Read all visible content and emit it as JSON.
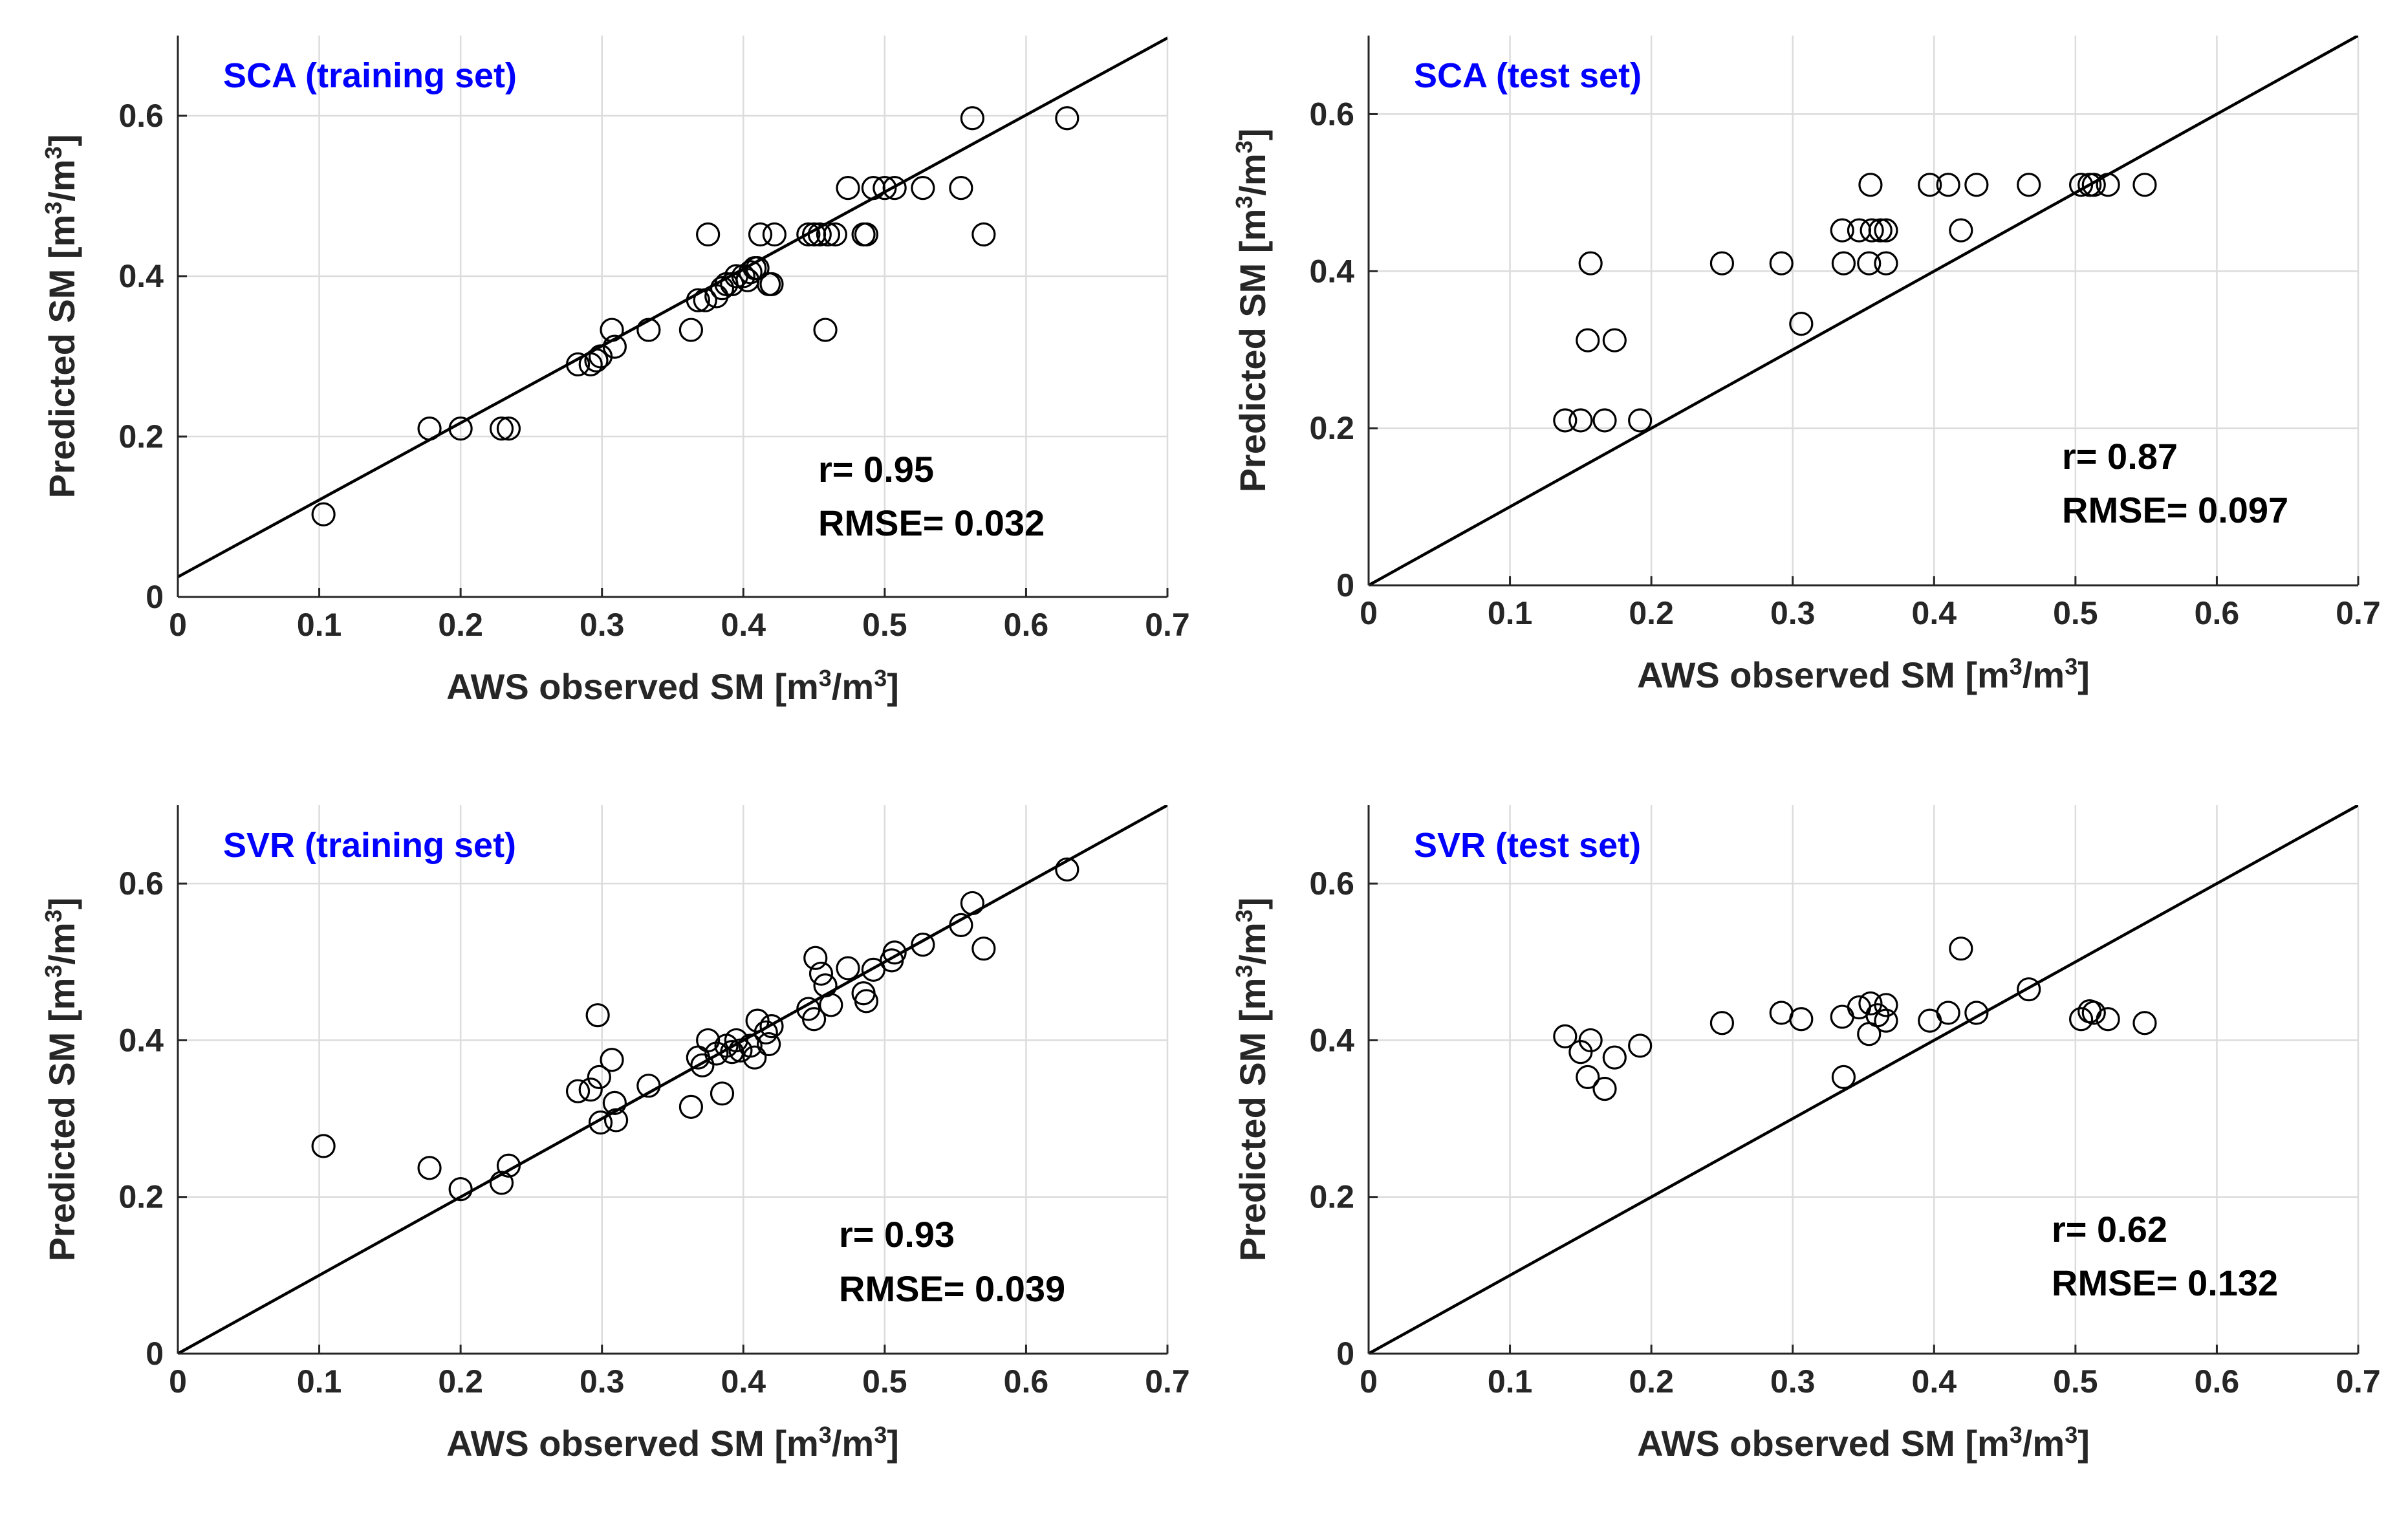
{
  "figure": {
    "background": "#ffffff"
  },
  "chart_data": [
    {
      "type": "scatter",
      "title": "SCA (training set)",
      "title_color": "#0000ff",
      "xlabel": "AWS observed SM [m^3/m^3]",
      "ylabel": "Predicted SM [m^3/m^3]",
      "xlim": [
        0,
        0.7
      ],
      "ylim": [
        0,
        0.7
      ],
      "xticks": [
        "0",
        "0.1",
        "0.2",
        "0.3",
        "0.4",
        "0.5",
        "0.6",
        "0.7"
      ],
      "yticks": [
        "0",
        "0.2",
        "0.4",
        "0.6"
      ],
      "grid": true,
      "fit_line": {
        "intercept": 0.025,
        "slope": 0.96
      },
      "stats": {
        "r_label": "r= 0.95",
        "rmse_label": "RMSE= 0.032"
      },
      "points": [
        [
          0.103,
          0.103
        ],
        [
          0.178,
          0.21
        ],
        [
          0.2,
          0.21
        ],
        [
          0.229,
          0.21
        ],
        [
          0.234,
          0.21
        ],
        [
          0.283,
          0.29
        ],
        [
          0.292,
          0.29
        ],
        [
          0.296,
          0.295
        ],
        [
          0.299,
          0.3
        ],
        [
          0.307,
          0.333
        ],
        [
          0.309,
          0.312
        ],
        [
          0.333,
          0.333
        ],
        [
          0.363,
          0.333
        ],
        [
          0.368,
          0.37
        ],
        [
          0.373,
          0.37
        ],
        [
          0.375,
          0.452
        ],
        [
          0.381,
          0.375
        ],
        [
          0.385,
          0.385
        ],
        [
          0.388,
          0.39
        ],
        [
          0.392,
          0.39
        ],
        [
          0.395,
          0.4
        ],
        [
          0.4,
          0.4
        ],
        [
          0.403,
          0.395
        ],
        [
          0.405,
          0.405
        ],
        [
          0.408,
          0.41
        ],
        [
          0.41,
          0.41
        ],
        [
          0.412,
          0.452
        ],
        [
          0.418,
          0.39
        ],
        [
          0.42,
          0.39
        ],
        [
          0.422,
          0.452
        ],
        [
          0.446,
          0.452
        ],
        [
          0.45,
          0.452
        ],
        [
          0.454,
          0.452
        ],
        [
          0.458,
          0.333
        ],
        [
          0.46,
          0.452
        ],
        [
          0.465,
          0.452
        ],
        [
          0.474,
          0.51
        ],
        [
          0.485,
          0.452
        ],
        [
          0.487,
          0.452
        ],
        [
          0.492,
          0.51
        ],
        [
          0.5,
          0.51
        ],
        [
          0.507,
          0.51
        ],
        [
          0.527,
          0.51
        ],
        [
          0.554,
          0.51
        ],
        [
          0.562,
          0.597
        ],
        [
          0.57,
          0.452
        ],
        [
          0.629,
          0.597
        ]
      ]
    },
    {
      "type": "scatter",
      "title": "SCA (test set)",
      "title_color": "#0000ff",
      "xlabel": "AWS observed SM [m^3/m^3]",
      "ylabel": "Predicted SM [m^3/m^3]",
      "xlim": [
        0,
        0.7
      ],
      "ylim": [
        0,
        0.7
      ],
      "xticks": [
        "0",
        "0.1",
        "0.2",
        "0.3",
        "0.4",
        "0.5",
        "0.6",
        "0.7"
      ],
      "yticks": [
        "0",
        "0.2",
        "0.4",
        "0.6"
      ],
      "grid": true,
      "fit_line": {
        "intercept": 0.0,
        "slope": 1.0
      },
      "stats": {
        "r_label": "r= 0.87",
        "rmse_label": "RMSE= 0.097"
      },
      "points": [
        [
          0.139,
          0.21
        ],
        [
          0.15,
          0.21
        ],
        [
          0.155,
          0.312
        ],
        [
          0.157,
          0.41
        ],
        [
          0.167,
          0.21
        ],
        [
          0.174,
          0.312
        ],
        [
          0.192,
          0.21
        ],
        [
          0.25,
          0.41
        ],
        [
          0.292,
          0.41
        ],
        [
          0.306,
          0.333
        ],
        [
          0.335,
          0.452
        ],
        [
          0.336,
          0.41
        ],
        [
          0.347,
          0.452
        ],
        [
          0.354,
          0.41
        ],
        [
          0.355,
          0.51
        ],
        [
          0.356,
          0.452
        ],
        [
          0.362,
          0.452
        ],
        [
          0.366,
          0.41
        ],
        [
          0.366,
          0.452
        ],
        [
          0.397,
          0.51
        ],
        [
          0.41,
          0.51
        ],
        [
          0.419,
          0.452
        ],
        [
          0.43,
          0.51
        ],
        [
          0.467,
          0.51
        ],
        [
          0.504,
          0.51
        ],
        [
          0.51,
          0.51
        ],
        [
          0.513,
          0.51
        ],
        [
          0.523,
          0.51
        ],
        [
          0.549,
          0.51
        ]
      ]
    },
    {
      "type": "scatter",
      "title": "SVR (training set)",
      "title_color": "#0000ff",
      "xlabel": "AWS observed SM [m^3/m^3]",
      "ylabel": "Predicted SM [m^3/m^3]",
      "xlim": [
        0,
        0.7
      ],
      "ylim": [
        0,
        0.7
      ],
      "xticks": [
        "0",
        "0.1",
        "0.2",
        "0.3",
        "0.4",
        "0.5",
        "0.6",
        "0.7"
      ],
      "yticks": [
        "0",
        "0.2",
        "0.4",
        "0.6"
      ],
      "grid": true,
      "fit_line": {
        "intercept": 0.0,
        "slope": 1.0
      },
      "stats": {
        "r_label": "r= 0.93",
        "rmse_label": "RMSE= 0.039"
      },
      "points": [
        [
          0.103,
          0.265
        ],
        [
          0.178,
          0.237
        ],
        [
          0.2,
          0.21
        ],
        [
          0.229,
          0.218
        ],
        [
          0.234,
          0.24
        ],
        [
          0.283,
          0.335
        ],
        [
          0.292,
          0.337
        ],
        [
          0.297,
          0.432
        ],
        [
          0.298,
          0.353
        ],
        [
          0.299,
          0.295
        ],
        [
          0.307,
          0.375
        ],
        [
          0.309,
          0.32
        ],
        [
          0.31,
          0.298
        ],
        [
          0.333,
          0.342
        ],
        [
          0.363,
          0.315
        ],
        [
          0.368,
          0.378
        ],
        [
          0.371,
          0.368
        ],
        [
          0.375,
          0.4
        ],
        [
          0.381,
          0.383
        ],
        [
          0.385,
          0.332
        ],
        [
          0.388,
          0.393
        ],
        [
          0.392,
          0.385
        ],
        [
          0.395,
          0.4
        ],
        [
          0.398,
          0.387
        ],
        [
          0.405,
          0.393
        ],
        [
          0.408,
          0.378
        ],
        [
          0.41,
          0.425
        ],
        [
          0.416,
          0.41
        ],
        [
          0.418,
          0.395
        ],
        [
          0.42,
          0.418
        ],
        [
          0.446,
          0.44
        ],
        [
          0.45,
          0.427
        ],
        [
          0.451,
          0.505
        ],
        [
          0.455,
          0.485
        ],
        [
          0.458,
          0.47
        ],
        [
          0.462,
          0.445
        ],
        [
          0.474,
          0.492
        ],
        [
          0.485,
          0.46
        ],
        [
          0.487,
          0.45
        ],
        [
          0.492,
          0.49
        ],
        [
          0.505,
          0.502
        ],
        [
          0.507,
          0.512
        ],
        [
          0.527,
          0.522
        ],
        [
          0.554,
          0.547
        ],
        [
          0.562,
          0.575
        ],
        [
          0.57,
          0.517
        ],
        [
          0.629,
          0.618
        ]
      ]
    },
    {
      "type": "scatter",
      "title": "SVR (test set)",
      "title_color": "#0000ff",
      "xlabel": "AWS observed SM [m^3/m^3]",
      "ylabel": "Predicted SM [m^3/m^3]",
      "xlim": [
        0,
        0.7
      ],
      "ylim": [
        0,
        0.7
      ],
      "xticks": [
        "0",
        "0.1",
        "0.2",
        "0.3",
        "0.4",
        "0.5",
        "0.6",
        "0.7"
      ],
      "yticks": [
        "0",
        "0.2",
        "0.4",
        "0.6"
      ],
      "grid": true,
      "fit_line": {
        "intercept": 0.0,
        "slope": 1.0
      },
      "stats": {
        "r_label": "r= 0.62",
        "rmse_label": "RMSE= 0.132"
      },
      "points": [
        [
          0.139,
          0.405
        ],
        [
          0.15,
          0.385
        ],
        [
          0.155,
          0.353
        ],
        [
          0.157,
          0.4
        ],
        [
          0.167,
          0.338
        ],
        [
          0.174,
          0.378
        ],
        [
          0.192,
          0.393
        ],
        [
          0.25,
          0.422
        ],
        [
          0.292,
          0.435
        ],
        [
          0.306,
          0.427
        ],
        [
          0.335,
          0.43
        ],
        [
          0.336,
          0.353
        ],
        [
          0.347,
          0.442
        ],
        [
          0.354,
          0.408
        ],
        [
          0.355,
          0.447
        ],
        [
          0.36,
          0.432
        ],
        [
          0.366,
          0.425
        ],
        [
          0.366,
          0.445
        ],
        [
          0.397,
          0.425
        ],
        [
          0.41,
          0.435
        ],
        [
          0.419,
          0.517
        ],
        [
          0.43,
          0.435
        ],
        [
          0.467,
          0.465
        ],
        [
          0.504,
          0.427
        ],
        [
          0.51,
          0.437
        ],
        [
          0.513,
          0.435
        ],
        [
          0.523,
          0.427
        ],
        [
          0.549,
          0.422
        ]
      ]
    }
  ]
}
